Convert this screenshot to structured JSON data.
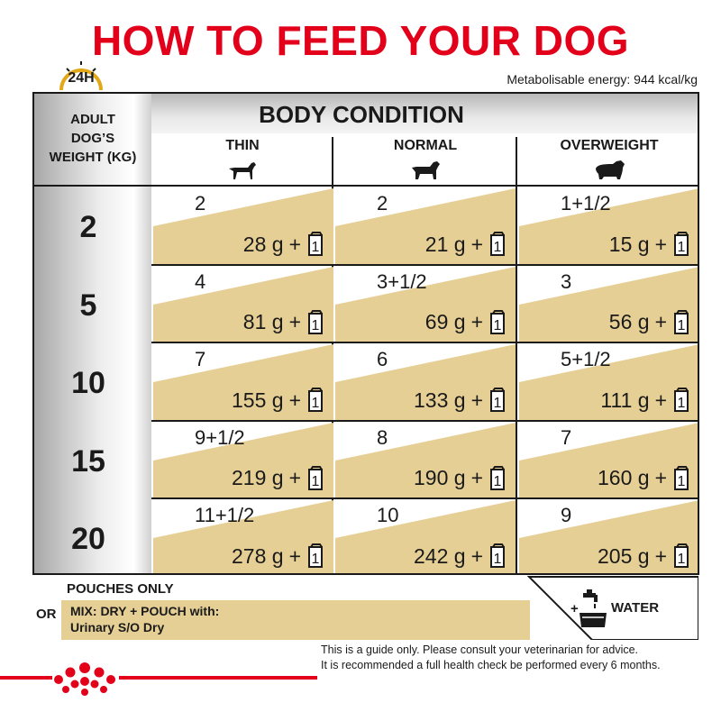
{
  "title": "HOW TO FEED YOUR DOG",
  "clock_label": "24H",
  "energy": "Metabolisable energy: 944 kcal/kg",
  "weight_header": [
    "ADULT",
    "DOG’S",
    "WEIGHT (KG)"
  ],
  "body_condition_title": "BODY CONDITION",
  "columns": [
    "THIN",
    "NORMAL",
    "OVERWEIGHT"
  ],
  "rows": [
    {
      "weight": "2",
      "cells": [
        {
          "pouches": "2",
          "grams": "28 g"
        },
        {
          "pouches": "2",
          "grams": "21 g"
        },
        {
          "pouches": "1+1/2",
          "grams": "15 g"
        }
      ]
    },
    {
      "weight": "5",
      "cells": [
        {
          "pouches": "4",
          "grams": "81 g"
        },
        {
          "pouches": "3+1/2",
          "grams": "69 g"
        },
        {
          "pouches": "3",
          "grams": "56 g"
        }
      ]
    },
    {
      "weight": "10",
      "cells": [
        {
          "pouches": "7",
          "grams": "155 g"
        },
        {
          "pouches": "6",
          "grams": "133 g"
        },
        {
          "pouches": "5+1/2",
          "grams": "111 g"
        }
      ]
    },
    {
      "weight": "15",
      "cells": [
        {
          "pouches": "9+1/2",
          "grams": "219 g"
        },
        {
          "pouches": "8",
          "grams": "190 g"
        },
        {
          "pouches": "7",
          "grams": "160 g"
        }
      ]
    },
    {
      "weight": "20",
      "cells": [
        {
          "pouches": "11+1/2",
          "grams": "278 g"
        },
        {
          "pouches": "10",
          "grams": "242 g"
        },
        {
          "pouches": "9",
          "grams": "205 g"
        }
      ]
    }
  ],
  "plus_one": "+",
  "pouch_number": "1",
  "legend": {
    "pouches_only": "POUCHES ONLY",
    "or": "OR",
    "mix_line1": "MIX: DRY + POUCH with:",
    "mix_line2": "Urinary S/O Dry",
    "water": "WATER",
    "water_plus": "+"
  },
  "notes": [
    "This is a guide only. Please consult your veterinarian for advice.",
    "It is recommended a full health check be performed every 6 months."
  ],
  "colors": {
    "brand_red": "#e2001a",
    "beige": "#e6cf95",
    "dark": "#1a1a1a"
  }
}
